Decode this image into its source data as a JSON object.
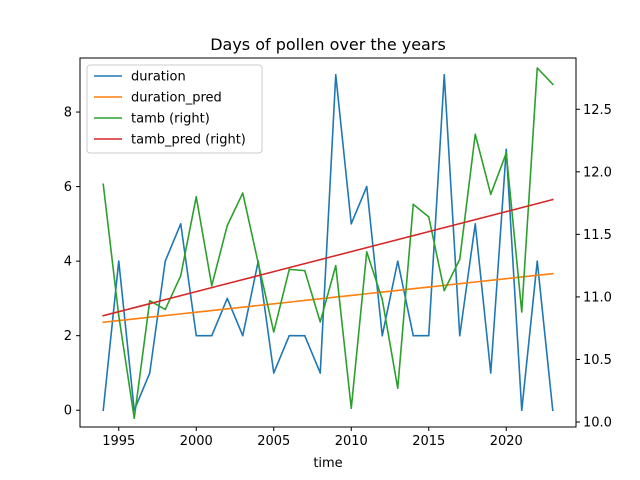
{
  "chart_data": {
    "type": "line",
    "title": "Days of pollen over the years",
    "xlabel": "time",
    "ylabel": "",
    "y2label": "",
    "xlim": [
      1992.5,
      2024.5
    ],
    "ylim": [
      -0.45,
      9.45
    ],
    "y2lim": [
      9.96,
      12.91
    ],
    "x_ticks": [
      1995,
      2000,
      2005,
      2010,
      2015,
      2020
    ],
    "y_ticks": [
      0,
      2,
      4,
      6,
      8
    ],
    "y2_ticks": [
      10.0,
      10.5,
      11.0,
      11.5,
      12.0,
      12.5
    ],
    "y2_tick_labels": [
      "10.0",
      "10.5",
      "11.0",
      "11.5",
      "12.0",
      "12.5"
    ],
    "x": [
      1994,
      1995,
      1996,
      1997,
      1998,
      1999,
      2000,
      2001,
      2002,
      2003,
      2004,
      2005,
      2006,
      2007,
      2008,
      2009,
      2010,
      2011,
      2012,
      2013,
      2014,
      2015,
      2016,
      2017,
      2018,
      2019,
      2020,
      2021,
      2022,
      2023
    ],
    "legend_position": "top-left",
    "grid": false,
    "series": [
      {
        "name": "duration",
        "axis": "left",
        "color": "#1f77b4",
        "values": [
          0,
          4,
          0,
          1,
          4,
          5,
          2,
          2,
          3,
          2,
          4,
          1,
          2,
          2,
          1,
          9,
          5,
          6,
          2,
          4,
          2,
          2,
          9,
          2,
          5,
          1,
          7,
          0,
          4,
          0
        ]
      },
      {
        "name": "duration_pred",
        "axis": "left",
        "color": "#ff7f0e",
        "values": [
          2.36,
          2.405,
          2.45,
          2.495,
          2.54,
          2.585,
          2.63,
          2.675,
          2.72,
          2.765,
          2.81,
          2.855,
          2.9,
          2.945,
          2.99,
          3.035,
          3.08,
          3.125,
          3.17,
          3.215,
          3.26,
          3.305,
          3.35,
          3.395,
          3.44,
          3.485,
          3.53,
          3.575,
          3.62,
          3.665
        ]
      },
      {
        "name": "tamb (right)",
        "axis": "right",
        "color": "#2ca02c",
        "values": [
          11.9,
          10.85,
          10.03,
          10.97,
          10.9,
          11.17,
          11.8,
          11.09,
          11.57,
          11.83,
          11.27,
          10.72,
          11.22,
          11.21,
          10.8,
          11.25,
          10.11,
          11.36,
          10.98,
          10.27,
          11.74,
          11.64,
          11.05,
          11.3,
          12.3,
          11.82,
          12.15,
          10.88,
          12.83,
          12.7
        ]
      },
      {
        "name": "tamb_pred (right)",
        "axis": "right",
        "color": "#d62728",
        "values": [
          10.85,
          10.882,
          10.914,
          10.946,
          10.978,
          11.01,
          11.042,
          11.074,
          11.106,
          11.138,
          11.17,
          11.202,
          11.234,
          11.266,
          11.298,
          11.33,
          11.362,
          11.394,
          11.426,
          11.458,
          11.49,
          11.522,
          11.554,
          11.586,
          11.618,
          11.65,
          11.682,
          11.714,
          11.746,
          11.778
        ]
      }
    ]
  }
}
